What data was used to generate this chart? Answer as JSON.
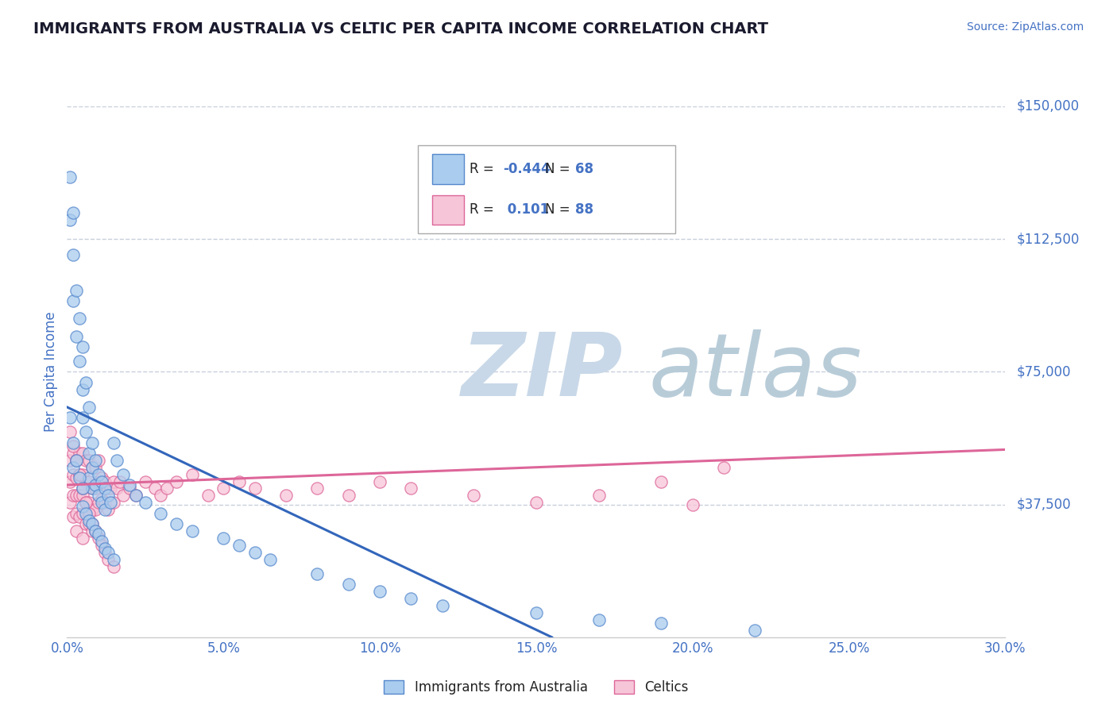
{
  "title": "IMMIGRANTS FROM AUSTRALIA VS CELTIC PER CAPITA INCOME CORRELATION CHART",
  "source_text": "Source: ZipAtlas.com",
  "ylabel": "Per Capita Income",
  "xlim": [
    0.0,
    0.3
  ],
  "ylim": [
    0,
    150000
  ],
  "ytick_labels": [
    "$37,500",
    "$75,000",
    "$112,500",
    "$150,000"
  ],
  "ytick_values": [
    37500,
    75000,
    112500,
    150000
  ],
  "xtick_labels": [
    "0.0%",
    "5.0%",
    "10.0%",
    "15.0%",
    "20.0%",
    "25.0%",
    "30.0%"
  ],
  "xtick_values": [
    0.0,
    0.05,
    0.1,
    0.15,
    0.2,
    0.25,
    0.3
  ],
  "series": [
    {
      "label": "Immigrants from Australia",
      "color": "#aaccee",
      "edge_color": "#5588cc",
      "R": -0.444,
      "N": 68,
      "trend_color": "#3366bb",
      "trend_x0": 0.0,
      "trend_y0": 65000,
      "trend_x1": 0.155,
      "trend_y1": 0,
      "x": [
        0.001,
        0.001,
        0.002,
        0.002,
        0.002,
        0.003,
        0.003,
        0.004,
        0.004,
        0.005,
        0.005,
        0.005,
        0.006,
        0.006,
        0.007,
        0.007,
        0.007,
        0.008,
        0.008,
        0.008,
        0.009,
        0.009,
        0.01,
        0.01,
        0.011,
        0.011,
        0.012,
        0.012,
        0.013,
        0.014,
        0.015,
        0.016,
        0.018,
        0.02,
        0.022,
        0.025,
        0.03,
        0.035,
        0.04,
        0.05,
        0.055,
        0.06,
        0.065,
        0.08,
        0.09,
        0.1,
        0.11,
        0.12,
        0.15,
        0.17,
        0.19,
        0.22,
        0.001,
        0.002,
        0.002,
        0.003,
        0.004,
        0.005,
        0.005,
        0.006,
        0.007,
        0.008,
        0.009,
        0.01,
        0.011,
        0.012,
        0.013,
        0.015
      ],
      "y": [
        130000,
        118000,
        120000,
        108000,
        95000,
        98000,
        85000,
        90000,
        78000,
        82000,
        70000,
        62000,
        72000,
        58000,
        65000,
        52000,
        45000,
        55000,
        48000,
        42000,
        50000,
        43000,
        46000,
        40000,
        44000,
        38000,
        42000,
        36000,
        40000,
        38000,
        55000,
        50000,
        46000,
        43000,
        40000,
        38000,
        35000,
        32000,
        30000,
        28000,
        26000,
        24000,
        22000,
        18000,
        15000,
        13000,
        11000,
        9000,
        7000,
        5000,
        4000,
        2000,
        62000,
        55000,
        48000,
        50000,
        45000,
        42000,
        37000,
        35000,
        33000,
        32000,
        30000,
        29000,
        27000,
        25000,
        24000,
        22000
      ]
    },
    {
      "label": "Celtics",
      "color": "#f7c5d8",
      "edge_color": "#dd6699",
      "R": 0.101,
      "N": 88,
      "trend_color": "#dd6699",
      "trend_x0": 0.0,
      "trend_y0": 43000,
      "trend_x1": 0.3,
      "trend_y1": 53000,
      "x": [
        0.001,
        0.001,
        0.001,
        0.002,
        0.002,
        0.002,
        0.002,
        0.003,
        0.003,
        0.003,
        0.003,
        0.003,
        0.004,
        0.004,
        0.004,
        0.004,
        0.005,
        0.005,
        0.005,
        0.005,
        0.005,
        0.006,
        0.006,
        0.006,
        0.006,
        0.007,
        0.007,
        0.007,
        0.007,
        0.008,
        0.008,
        0.008,
        0.008,
        0.009,
        0.009,
        0.009,
        0.01,
        0.01,
        0.01,
        0.011,
        0.011,
        0.012,
        0.012,
        0.013,
        0.013,
        0.014,
        0.015,
        0.015,
        0.016,
        0.017,
        0.018,
        0.02,
        0.022,
        0.025,
        0.028,
        0.03,
        0.032,
        0.035,
        0.04,
        0.045,
        0.05,
        0.055,
        0.06,
        0.07,
        0.08,
        0.09,
        0.1,
        0.11,
        0.13,
        0.15,
        0.17,
        0.19,
        0.21,
        0.001,
        0.002,
        0.003,
        0.004,
        0.005,
        0.006,
        0.007,
        0.008,
        0.009,
        0.01,
        0.011,
        0.012,
        0.013,
        0.015,
        0.2
      ],
      "y": [
        50000,
        44000,
        38000,
        52000,
        46000,
        40000,
        34000,
        50000,
        45000,
        40000,
        35000,
        30000,
        52000,
        46000,
        40000,
        34000,
        52000,
        46000,
        40000,
        35000,
        28000,
        50000,
        44000,
        38000,
        32000,
        50000,
        44000,
        38000,
        32000,
        48000,
        42000,
        36000,
        30000,
        48000,
        42000,
        36000,
        50000,
        44000,
        38000,
        45000,
        39000,
        44000,
        38000,
        42000,
        36000,
        42000,
        44000,
        38000,
        42000,
        44000,
        40000,
        42000,
        40000,
        44000,
        42000,
        40000,
        42000,
        44000,
        46000,
        40000,
        42000,
        44000,
        42000,
        40000,
        42000,
        40000,
        44000,
        42000,
        40000,
        38000,
        40000,
        44000,
        48000,
        58000,
        54000,
        50000,
        46000,
        42000,
        38000,
        35000,
        32000,
        30000,
        28000,
        26000,
        24000,
        22000,
        20000,
        37500
      ]
    }
  ],
  "legend_box_colors": [
    "#aaccee",
    "#f7c5d8"
  ],
  "legend_box_edge": [
    "#5588cc",
    "#dd6699"
  ],
  "watermark_zip": "ZIP",
  "watermark_atlas": "atlas",
  "watermark_color": "#c8d8e8",
  "watermark_atlas_color": "#b8ccd8",
  "title_color": "#1a1a2e",
  "tick_label_color": "#4472c4",
  "grid_color": "#c8d0dc",
  "background_color": "#ffffff",
  "legend_text_color": "#222222",
  "legend_value_color": "#4472c4",
  "legend_R_labels": [
    "R = ",
    "R = "
  ],
  "legend_R_values": [
    "-0.444",
    " 0.101"
  ],
  "legend_N_labels": [
    "N = ",
    "N = "
  ],
  "legend_N_values": [
    "68",
    "88"
  ]
}
